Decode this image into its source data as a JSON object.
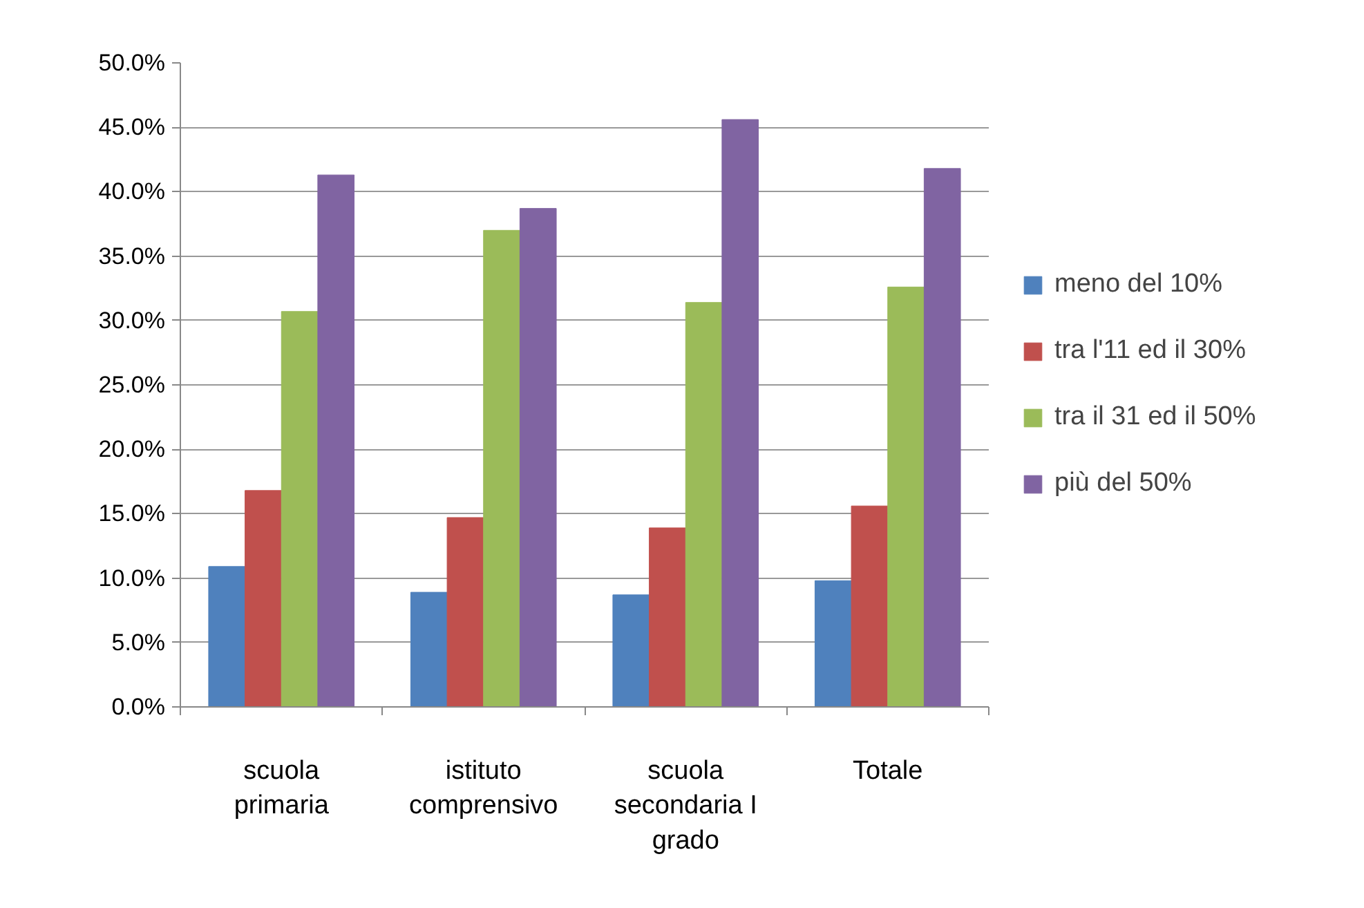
{
  "chart_data": {
    "type": "bar",
    "categories": [
      "scuola primaria",
      "istituto comprensivo",
      "scuola secondaria I grado",
      "Totale"
    ],
    "series": [
      {
        "name": "meno del 10%",
        "color": "#4f81bd",
        "values": [
          10.9,
          8.9,
          8.7,
          9.8
        ]
      },
      {
        "name": "tra l'11 ed il 30%",
        "color": "#c0504d",
        "values": [
          16.8,
          14.7,
          13.9,
          15.6
        ]
      },
      {
        "name": "tra il 31 ed il 50%",
        "color": "#9bbb59",
        "values": [
          30.7,
          37.0,
          31.4,
          32.6
        ]
      },
      {
        "name": "più del 50%",
        "color": "#8064a2",
        "values": [
          41.3,
          38.7,
          45.6,
          41.8
        ]
      }
    ],
    "ylim": [
      0,
      50
    ],
    "yticks": [
      {
        "value": 0,
        "label": "0.0%"
      },
      {
        "value": 5,
        "label": "5.0%"
      },
      {
        "value": 10,
        "label": "10.0%"
      },
      {
        "value": 15,
        "label": "15.0%"
      },
      {
        "value": 20,
        "label": "20.0%"
      },
      {
        "value": 25,
        "label": "25.0%"
      },
      {
        "value": 30,
        "label": "30.0%"
      },
      {
        "value": 35,
        "label": "35.0%"
      },
      {
        "value": 40,
        "label": "40.0%"
      },
      {
        "value": 45,
        "label": "45.0%"
      },
      {
        "value": 50,
        "label": "50.0%"
      }
    ],
    "grid": "y",
    "legend": "right"
  }
}
